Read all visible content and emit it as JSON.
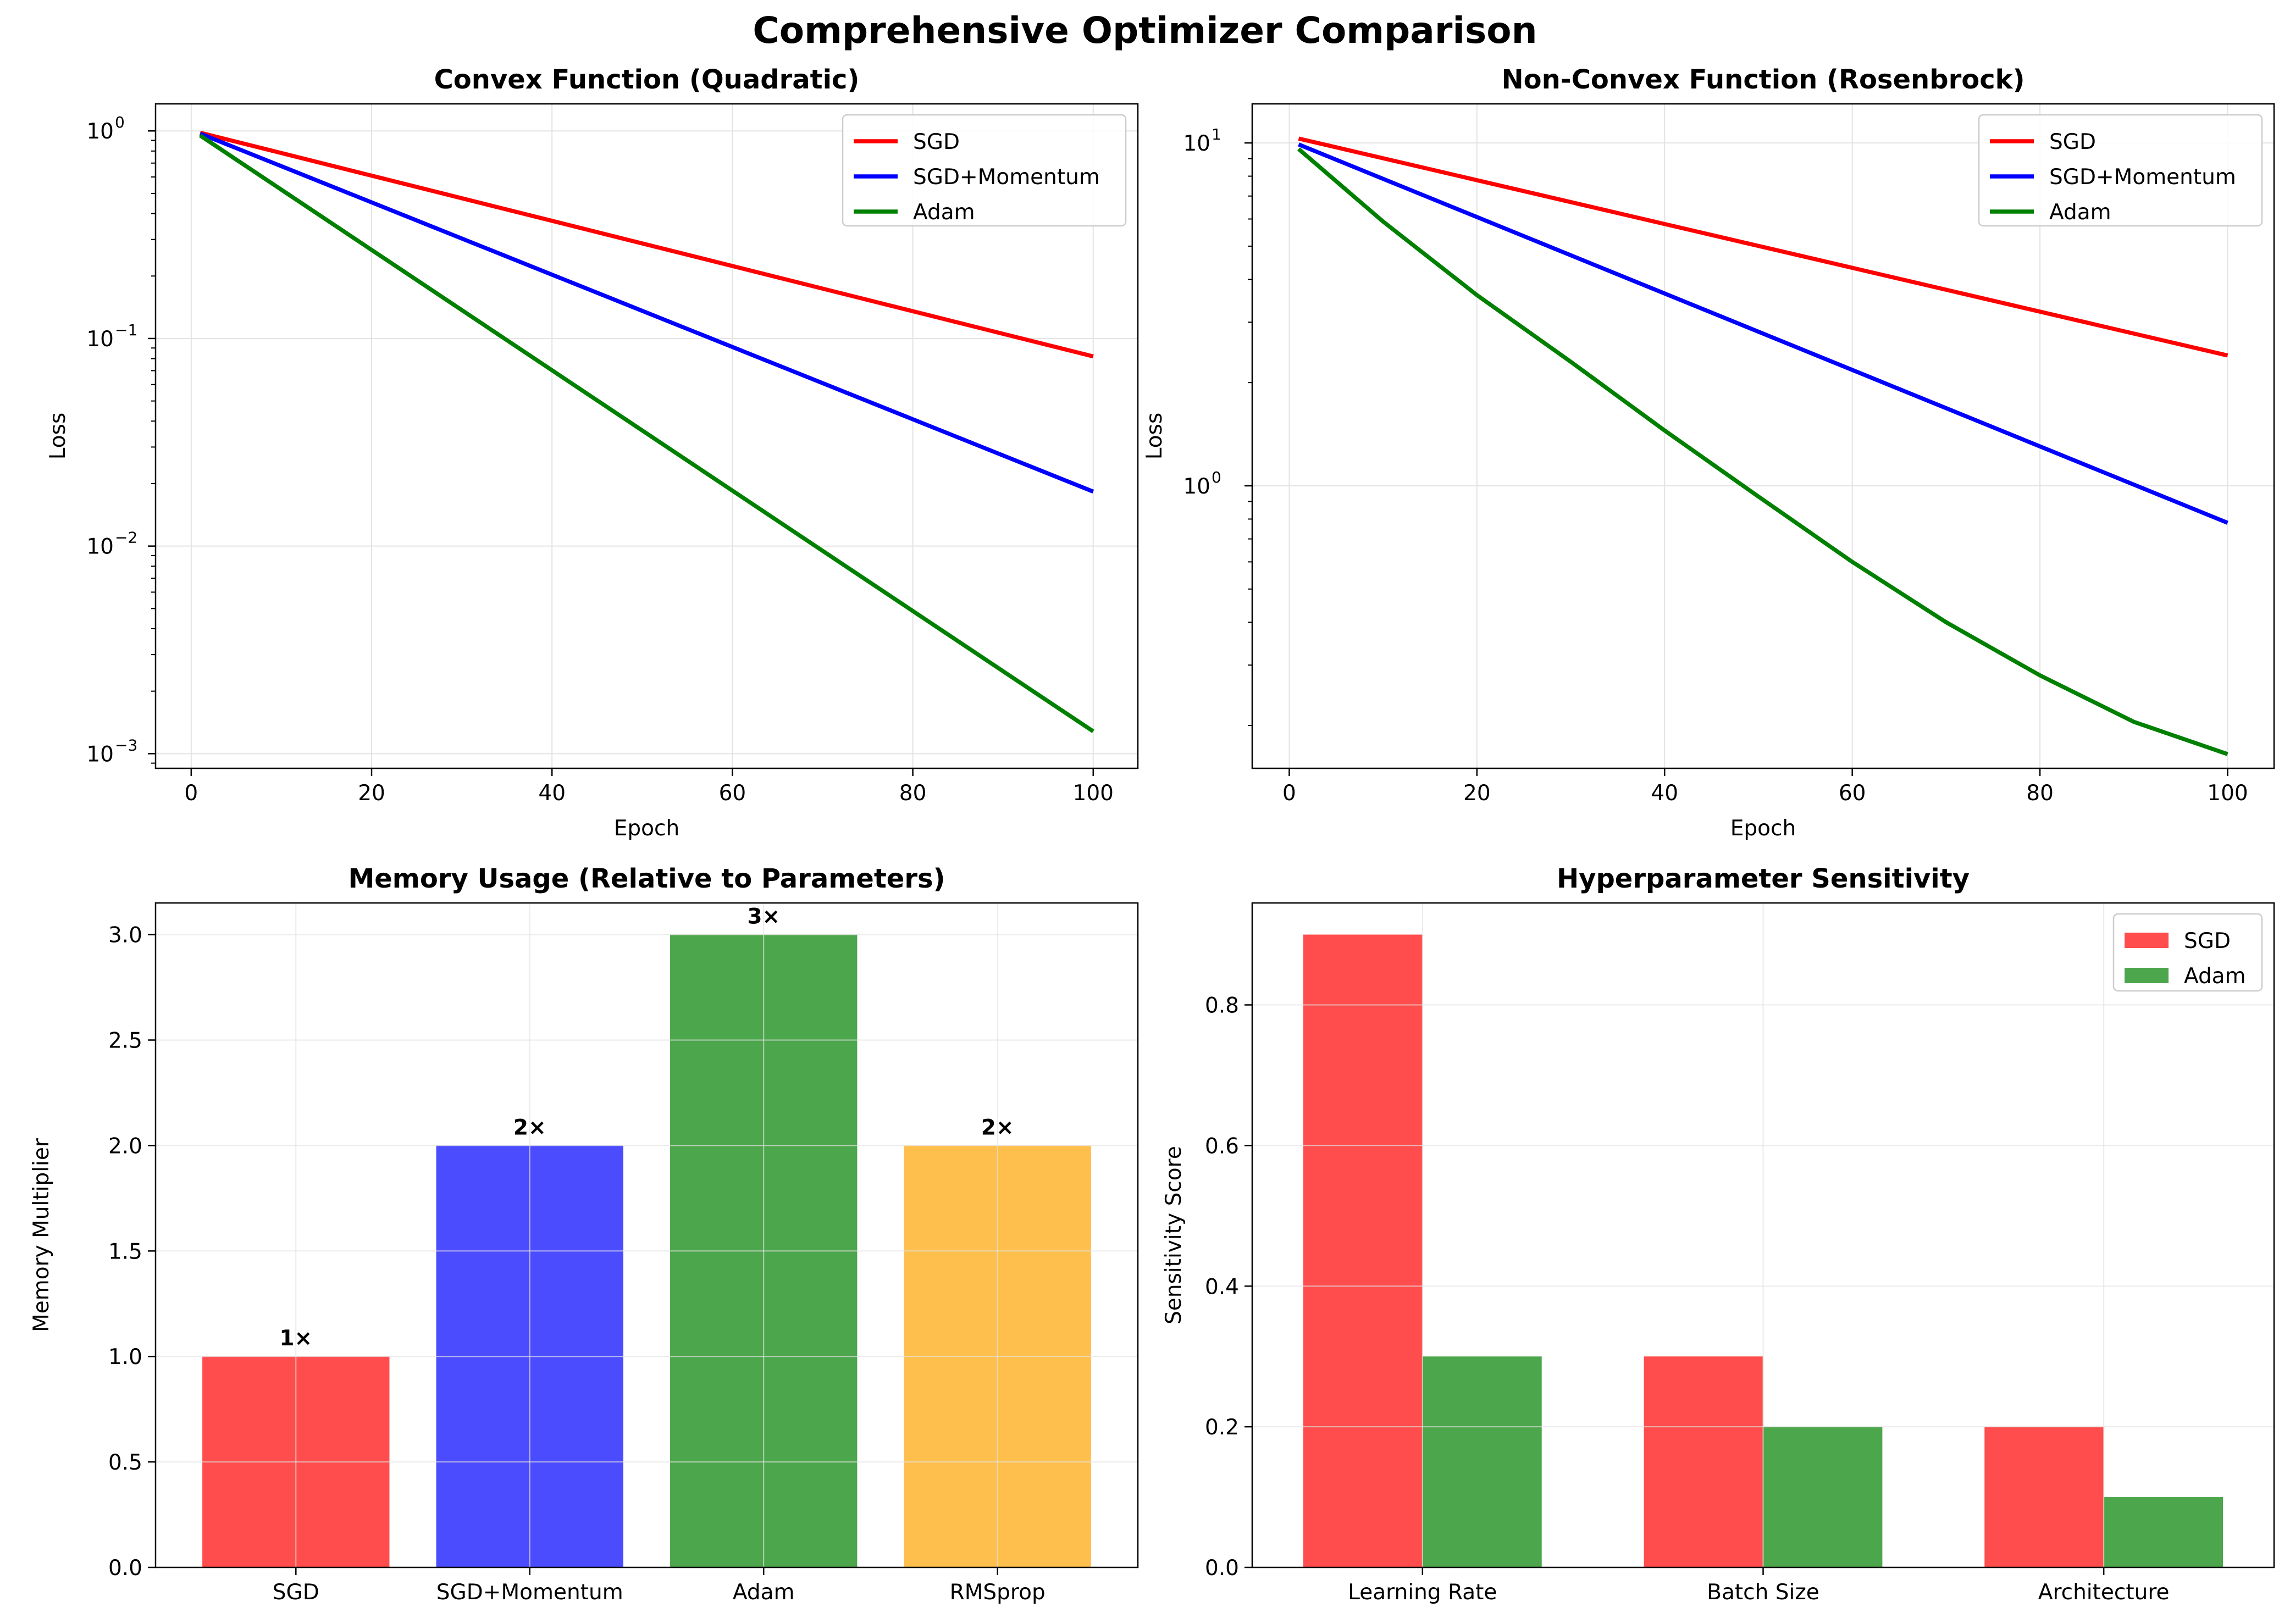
{
  "figure": {
    "suptitle": "Comprehensive Optimizer Comparison"
  },
  "chart_data": [
    {
      "type": "line",
      "title": "Convex Function (Quadratic)",
      "xlabel": "Epoch",
      "ylabel": "Loss",
      "yscale": "log",
      "xlim": [
        -3.95,
        104.95
      ],
      "ylim": [
        0.00085,
        1.35
      ],
      "xticks": [
        0,
        20,
        40,
        60,
        80,
        100
      ],
      "yticks": [
        {
          "value": 1,
          "base": "10",
          "exp": "0"
        },
        {
          "value": 0.1,
          "base": "10",
          "exp": "−1"
        },
        {
          "value": 0.01,
          "base": "10",
          "exp": "−2"
        },
        {
          "value": 0.001,
          "base": "10",
          "exp": "−3"
        }
      ],
      "grid": true,
      "legend": "upper right",
      "series": [
        {
          "name": "SGD",
          "color": "#ff0000",
          "x": [
            1,
            100
          ],
          "y": [
            0.98,
            0.082
          ]
        },
        {
          "name": "SGD+Momentum",
          "color": "#0000ff",
          "x": [
            1,
            100
          ],
          "y": [
            0.97,
            0.0183
          ]
        },
        {
          "name": "Adam",
          "color": "#008000",
          "x": [
            1,
            100
          ],
          "y": [
            0.95,
            0.00128
          ]
        }
      ]
    },
    {
      "type": "line",
      "title": "Non-Convex Function (Rosenbrock)",
      "xlabel": "Epoch",
      "ylabel": "Loss",
      "yscale": "log",
      "xlim": [
        -3.95,
        104.95
      ],
      "ylim": [
        0.15,
        13.0
      ],
      "xticks": [
        0,
        20,
        40,
        60,
        80,
        100
      ],
      "yticks": [
        {
          "value": 10,
          "base": "10",
          "exp": "1"
        },
        {
          "value": 1,
          "base": "10",
          "exp": "0"
        }
      ],
      "grid": true,
      "legend": "upper right",
      "series": [
        {
          "name": "SGD",
          "color": "#ff0000",
          "x": [
            1,
            100
          ],
          "y": [
            10.3,
            2.4
          ]
        },
        {
          "name": "SGD+Momentum",
          "color": "#0000ff",
          "x": [
            1,
            100
          ],
          "y": [
            9.9,
            0.78
          ]
        },
        {
          "name": "Adam",
          "color": "#008000",
          "x": [
            1,
            10,
            20,
            30,
            40,
            50,
            60,
            70,
            80,
            90,
            100
          ],
          "y": [
            9.6,
            5.9,
            3.6,
            2.3,
            1.45,
            0.93,
            0.6,
            0.4,
            0.28,
            0.205,
            0.165
          ]
        }
      ]
    },
    {
      "type": "bar",
      "title": "Memory Usage (Relative to Parameters)",
      "xlabel": "",
      "ylabel": "Memory Multiplier",
      "ylim": [
        0,
        3.15
      ],
      "yticks": [
        "0.0",
        "0.5",
        "1.0",
        "1.5",
        "2.0",
        "2.5",
        "3.0"
      ],
      "grid": true,
      "categories": [
        "SGD",
        "SGD+Momentum",
        "Adam",
        "RMSprop"
      ],
      "values": [
        1,
        2,
        3,
        2
      ],
      "data_labels": [
        "1×",
        "2×",
        "3×",
        "2×"
      ],
      "colors": [
        "#ff4c4c",
        "#4c4cff",
        "#4ca64c",
        "#ffbf4c"
      ]
    },
    {
      "type": "bar",
      "title": "Hyperparameter Sensitivity",
      "xlabel": "",
      "ylabel": "Sensitivity Score",
      "ylim": [
        0,
        0.945
      ],
      "yticks": [
        "0.0",
        "0.2",
        "0.4",
        "0.6",
        "0.8"
      ],
      "grid": true,
      "legend": "upper right",
      "categories": [
        "Learning Rate",
        "Batch Size",
        "Architecture"
      ],
      "series": [
        {
          "name": "SGD",
          "color": "#ff4c4c",
          "values": [
            0.9,
            0.3,
            0.2
          ]
        },
        {
          "name": "Adam",
          "color": "#4ca64c",
          "values": [
            0.3,
            0.2,
            0.1
          ]
        }
      ]
    }
  ]
}
